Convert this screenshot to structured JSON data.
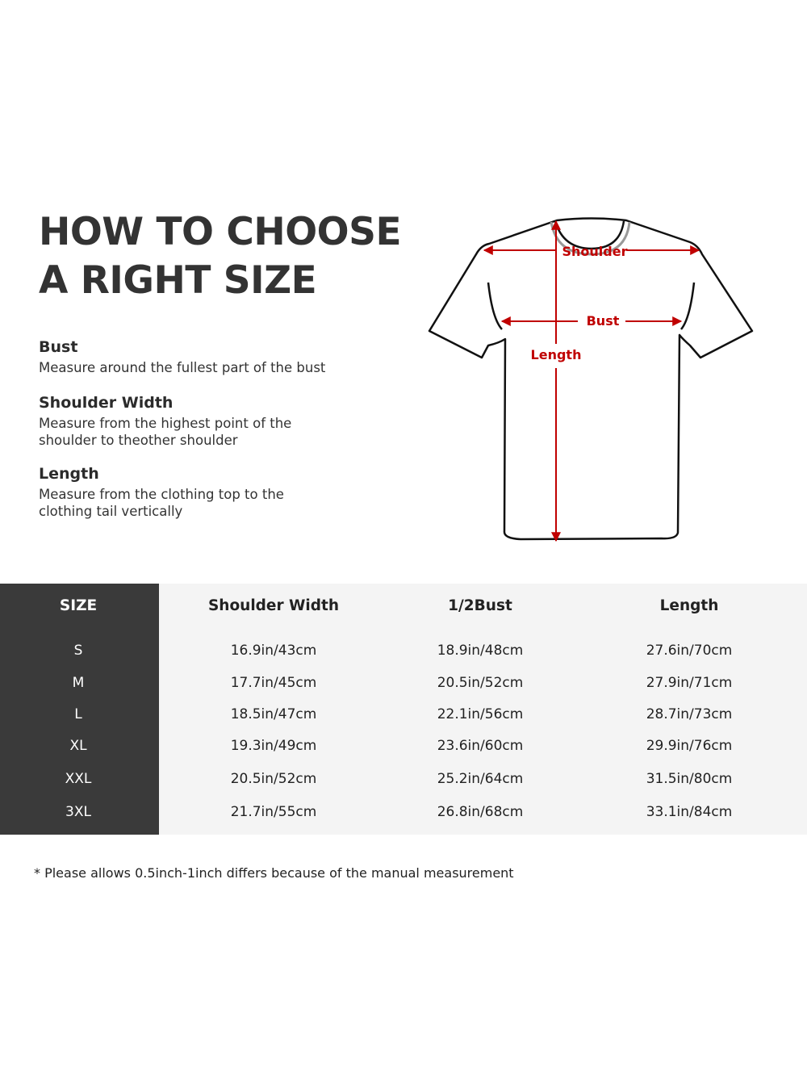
{
  "title_lines": [
    "HOW TO CHOOSE",
    "A RIGHT SIZE"
  ],
  "definitions": [
    {
      "term": "Bust",
      "lines": [
        "Measure around the fullest part of the bust"
      ]
    },
    {
      "term": "Shoulder Width",
      "lines": [
        "Measure from the highest point of the",
        "shoulder to theother shoulder"
      ]
    },
    {
      "term": "Length",
      "lines": [
        "Measure from the clothing top to the",
        "clothing tail vertically"
      ]
    }
  ],
  "diagram": {
    "labels": {
      "shoulder": "Shoulder",
      "bust": "Bust",
      "length": "Length"
    },
    "colors": {
      "arrow": "#c00000",
      "outline": "#111111"
    }
  },
  "table": {
    "headers": [
      "SIZE",
      "Shoulder Width",
      "1/2Bust",
      "Length"
    ],
    "rows": [
      [
        "S",
        "16.9in/43cm",
        "18.9in/48cm",
        "27.6in/70cm"
      ],
      [
        "M",
        "17.7in/45cm",
        "20.5in/52cm",
        "27.9in/71cm"
      ],
      [
        "L",
        "18.5in/47cm",
        "22.1in/56cm",
        "28.7in/73cm"
      ],
      [
        "XL",
        "19.3in/49cm",
        "23.6in/60cm",
        "29.9in/76cm"
      ],
      [
        "XXL",
        "20.5in/52cm",
        "25.2in/64cm",
        "31.5in/80cm"
      ],
      [
        "3XL",
        "21.7in/55cm",
        "26.8in/68cm",
        "33.1in/84cm"
      ]
    ],
    "colors": {
      "size_column": "#3a3a3a",
      "body": "#f4f4f4"
    }
  },
  "note": "* Please allows 0.5inch-1inch differs because of the  manual measurement"
}
